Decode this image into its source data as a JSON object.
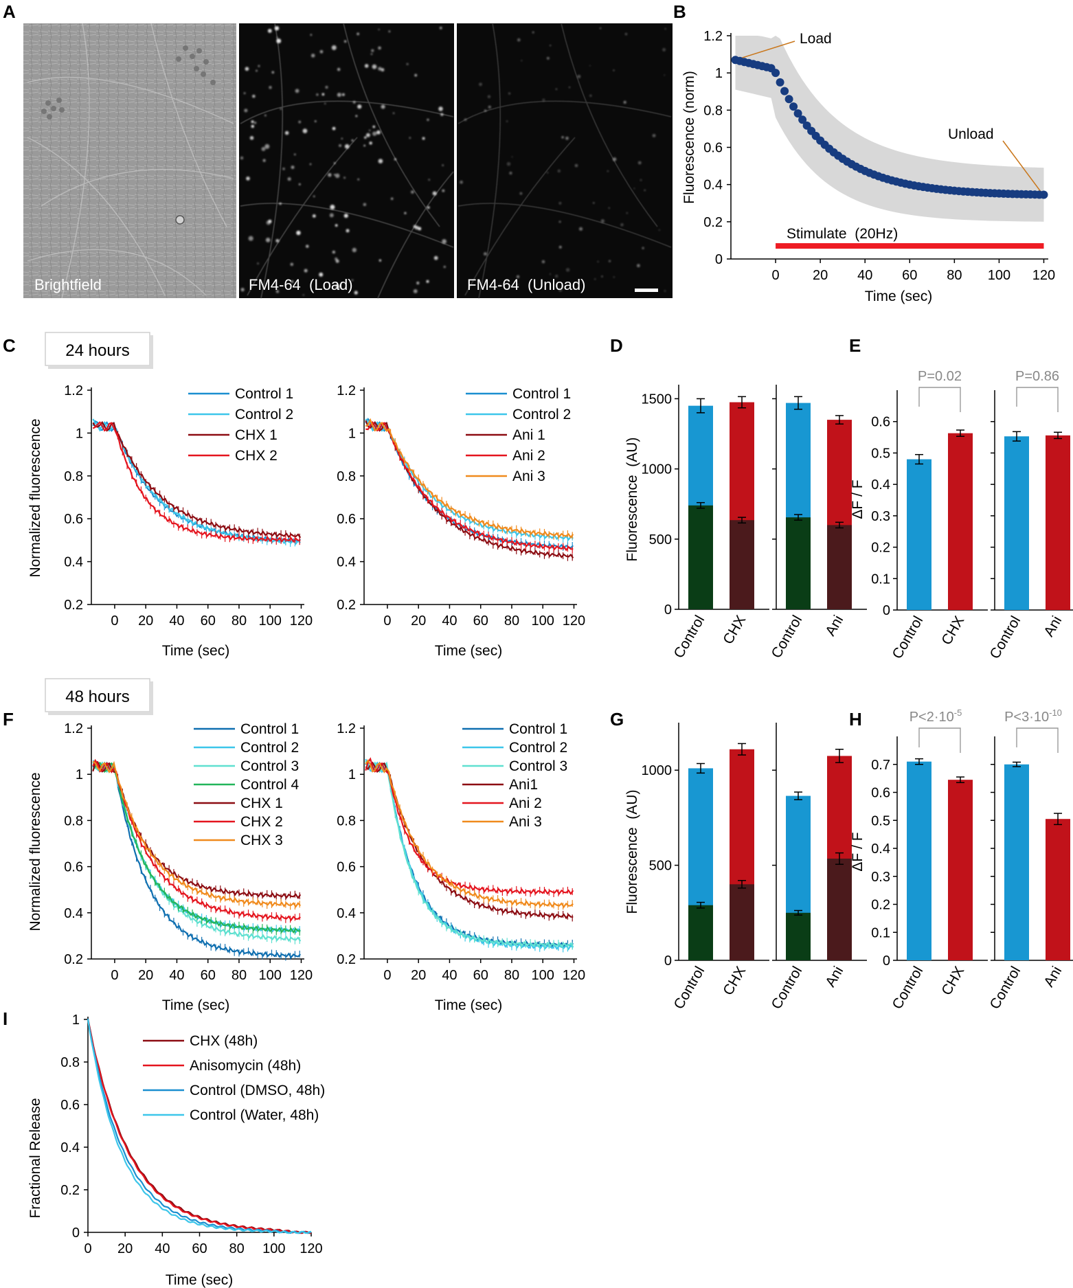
{
  "colors": {
    "control_blue": "#1a8fd0",
    "control_dark": "#0f6fb0",
    "control_light": "#3cc6ea",
    "control_teal": "#5fe0d0",
    "control_green": "#23b55a",
    "treat_red": "#b0101a",
    "treat_dark": "#8c0c12",
    "treat_bright": "#e4141e",
    "treat_orange": "#f08a1c",
    "bar_blue": "#1897d2",
    "bar_red": "#c1121a",
    "bar_green": "#0a3d16",
    "bar_brown": "#4b1a1c",
    "navy_point": "#173c80",
    "shade": "#d8d8d8",
    "pval_gray": "#888888",
    "stim_red": "#ee1c24",
    "leader": "#c9761a"
  },
  "chart_data": [
    {
      "panel": "A",
      "type": "image-panels",
      "micrographs": [
        {
          "label": "Brightfield",
          "icon": "brightfield-micrograph-icon"
        },
        {
          "label": "FM4-64  (Load)",
          "icon": "fm464-load-micrograph-icon"
        },
        {
          "label": "FM4-64  (Unload)",
          "icon": "fm464-unload-micrograph-icon"
        }
      ]
    },
    {
      "panel": "B",
      "type": "scatter",
      "xlabel": "Time (sec)",
      "ylabel": "Fluorescence (norm)",
      "xlim": [
        -20,
        122
      ],
      "ylim": [
        0,
        1.2
      ],
      "xticks": [
        0,
        20,
        40,
        60,
        80,
        100,
        120
      ],
      "yticks": [
        0,
        0.2,
        0.4,
        0.6,
        0.8,
        1,
        1.2
      ],
      "annotations": [
        "Load",
        "Unload"
      ],
      "stim_label": "Stimulate  (20Hz)",
      "stim_range": [
        0,
        120
      ],
      "points": {
        "x0": -18,
        "dx": 2,
        "base": 0.34,
        "amp": 0.66,
        "tau": 25,
        "pre": 1.02
      }
    },
    {
      "panel": "C",
      "type": "line",
      "box_label": "24 hours",
      "xlabel": "Time (sec)",
      "ylabel": "Normalized fluorescence",
      "ylim": [
        0.2,
        1.2
      ],
      "yticks": [
        0.2,
        0.4,
        0.6,
        0.8,
        1,
        1.2
      ],
      "xticks": [
        0,
        20,
        40,
        60,
        80,
        100,
        120
      ],
      "subplots": [
        {
          "series": [
            {
              "name": "Control 1",
              "color": "control_blue",
              "end": 0.49,
              "tau": 28
            },
            {
              "name": "Control 2",
              "color": "control_light",
              "end": 0.48,
              "tau": 30
            },
            {
              "name": "CHX 1",
              "color": "treat_dark",
              "end": 0.51,
              "tau": 30
            },
            {
              "name": "CHX 2",
              "color": "treat_bright",
              "end": 0.5,
              "tau": 20
            }
          ]
        },
        {
          "series": [
            {
              "name": "Control 1",
              "color": "control_blue",
              "end": 0.46,
              "tau": 28
            },
            {
              "name": "Control 2",
              "color": "control_light",
              "end": 0.5,
              "tau": 30
            },
            {
              "name": "Ani 1",
              "color": "treat_dark",
              "end": 0.41,
              "tau": 32
            },
            {
              "name": "Ani 2",
              "color": "treat_bright",
              "end": 0.45,
              "tau": 30
            },
            {
              "name": "Ani 3",
              "color": "treat_orange",
              "end": 0.51,
              "tau": 31
            }
          ]
        }
      ]
    },
    {
      "panel": "D",
      "type": "bar",
      "ylabel": "Fluorescence  (AU)",
      "ylim": [
        0,
        1600
      ],
      "yticks": [
        0,
        500,
        1000,
        1500
      ],
      "groups": [
        {
          "categories": [
            "Control",
            "CHX"
          ],
          "load": [
            1450,
            1475
          ],
          "load_err": [
            50,
            40
          ],
          "unload": [
            740,
            635
          ],
          "unload_err": [
            20,
            20
          ]
        },
        {
          "categories": [
            "Control",
            "Ani"
          ],
          "load": [
            1470,
            1350
          ],
          "load_err": [
            45,
            30
          ],
          "unload": [
            655,
            600
          ],
          "unload_err": [
            20,
            20
          ]
        }
      ]
    },
    {
      "panel": "E",
      "type": "bar",
      "ylabel": "ΔF / F",
      "ylim": [
        0,
        0.7
      ],
      "yticks": [
        0,
        0.1,
        0.2,
        0.3,
        0.4,
        0.5,
        0.6
      ],
      "groups": [
        {
          "categories": [
            "Control",
            "CHX"
          ],
          "values": [
            0.48,
            0.563
          ],
          "err": [
            0.015,
            0.01
          ],
          "pvalue": "P=0.02"
        },
        {
          "categories": [
            "Control",
            "Ani"
          ],
          "values": [
            0.553,
            0.556
          ],
          "err": [
            0.015,
            0.01
          ],
          "pvalue": "P=0.86"
        }
      ]
    },
    {
      "panel": "F",
      "type": "line",
      "box_label": "48 hours",
      "xlabel": "Time (sec)",
      "ylabel": "Normalized fluorescence",
      "ylim": [
        0.2,
        1.2
      ],
      "yticks": [
        0.2,
        0.4,
        0.6,
        0.8,
        1,
        1.2
      ],
      "xticks": [
        0,
        20,
        40,
        60,
        80,
        100,
        120
      ],
      "subplots": [
        {
          "series": [
            {
              "name": "Control 1",
              "color": "control_dark",
              "end": 0.21,
              "tau": 22
            },
            {
              "name": "Control 2",
              "color": "control_light",
              "end": 0.32,
              "tau": 22
            },
            {
              "name": "Control 3",
              "color": "control_teal",
              "end": 0.28,
              "tau": 24
            },
            {
              "name": "Control 4",
              "color": "control_green",
              "end": 0.32,
              "tau": 22
            },
            {
              "name": "CHX 1",
              "color": "treat_dark",
              "end": 0.47,
              "tau": 22
            },
            {
              "name": "CHX 2",
              "color": "treat_bright",
              "end": 0.37,
              "tau": 25
            },
            {
              "name": "CHX 3",
              "color": "treat_orange",
              "end": 0.43,
              "tau": 24
            }
          ]
        },
        {
          "series": [
            {
              "name": "Control 1",
              "color": "control_dark",
              "end": 0.26,
              "tau": 18
            },
            {
              "name": "Control 2",
              "color": "control_light",
              "end": 0.25,
              "tau": 18
            },
            {
              "name": "Control 3",
              "color": "control_teal",
              "end": 0.26,
              "tau": 17
            },
            {
              "name": "Ani1",
              "color": "treat_dark",
              "end": 0.38,
              "tau": 24
            },
            {
              "name": "Ani 2",
              "color": "treat_bright",
              "end": 0.49,
              "tau": 16
            },
            {
              "name": "Ani 3",
              "color": "treat_orange",
              "end": 0.43,
              "tau": 22
            }
          ]
        }
      ]
    },
    {
      "panel": "G",
      "type": "bar",
      "ylabel": "Fluorescence  (AU)",
      "ylim": [
        0,
        1250
      ],
      "yticks": [
        0,
        500,
        1000
      ],
      "groups": [
        {
          "categories": [
            "Control",
            "CHX"
          ],
          "load": [
            1010,
            1110
          ],
          "load_err": [
            25,
            30
          ],
          "unload": [
            290,
            400
          ],
          "unload_err": [
            15,
            20
          ]
        },
        {
          "categories": [
            "Control",
            "Ani"
          ],
          "load": [
            865,
            1075
          ],
          "load_err": [
            20,
            35
          ],
          "unload": [
            250,
            535
          ],
          "unload_err": [
            12,
            30
          ]
        }
      ]
    },
    {
      "panel": "H",
      "type": "bar",
      "ylabel": "ΔF / F",
      "ylim": [
        0,
        0.8
      ],
      "yticks": [
        0,
        0.1,
        0.2,
        0.3,
        0.4,
        0.5,
        0.6,
        0.7
      ],
      "groups": [
        {
          "categories": [
            "Control",
            "CHX"
          ],
          "values": [
            0.71,
            0.645
          ],
          "err": [
            0.01,
            0.01
          ],
          "pvalue": "P<2·10",
          "pvalue_exp": "-5"
        },
        {
          "categories": [
            "Control",
            "Ani"
          ],
          "values": [
            0.7,
            0.505
          ],
          "err": [
            0.008,
            0.02
          ],
          "pvalue": "P<3·10",
          "pvalue_exp": "-10"
        }
      ]
    },
    {
      "panel": "I",
      "type": "line",
      "xlabel": "Time (sec)",
      "ylabel": "Fractional Release",
      "xlim": [
        0,
        120
      ],
      "ylim": [
        0,
        1
      ],
      "xticks": [
        0,
        20,
        40,
        60,
        80,
        100,
        120
      ],
      "yticks": [
        0,
        0.2,
        0.4,
        0.6,
        0.8,
        1
      ],
      "series": [
        {
          "name": "CHX (48h)",
          "color": "treat_dark",
          "tau": 23
        },
        {
          "name": "Anisomycin (48h)",
          "color": "treat_bright",
          "tau": 22.5
        },
        {
          "name": "Control (DMSO, 48h)",
          "color": "control_blue",
          "tau": 20
        },
        {
          "name": "Control (Water, 48h)",
          "color": "control_light",
          "tau": 18.5
        }
      ]
    }
  ]
}
